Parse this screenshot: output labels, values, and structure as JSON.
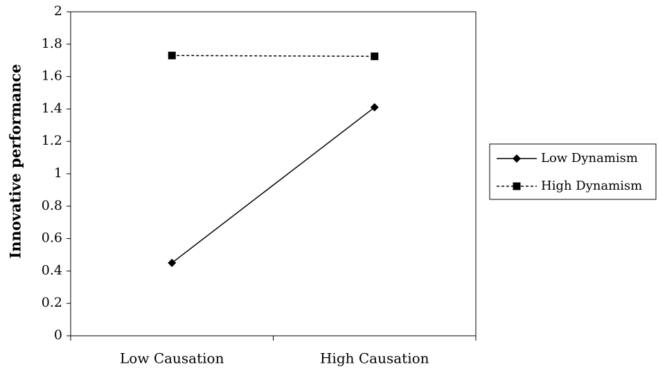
{
  "chart_data": {
    "type": "line",
    "title": "",
    "xlabel": "",
    "ylabel": "Innovative performance",
    "categories": [
      "Low Causation",
      "High Causation"
    ],
    "ylim": [
      0,
      2
    ],
    "yticks": [
      "0",
      "0.2",
      "0.4",
      "0.6",
      "0.8",
      "1",
      "1.2",
      "1.4",
      "1.6",
      "1.8",
      "2"
    ],
    "grid": false,
    "legend_position": "right",
    "series": [
      {
        "name": "Low Dynamism",
        "values": [
          0.45,
          1.41
        ],
        "marker": "diamond",
        "line_style": "solid",
        "color": "#000000"
      },
      {
        "name": "High Dynamism",
        "values": [
          1.73,
          1.725
        ],
        "marker": "square",
        "line_style": "dashed",
        "color": "#000000"
      }
    ]
  }
}
